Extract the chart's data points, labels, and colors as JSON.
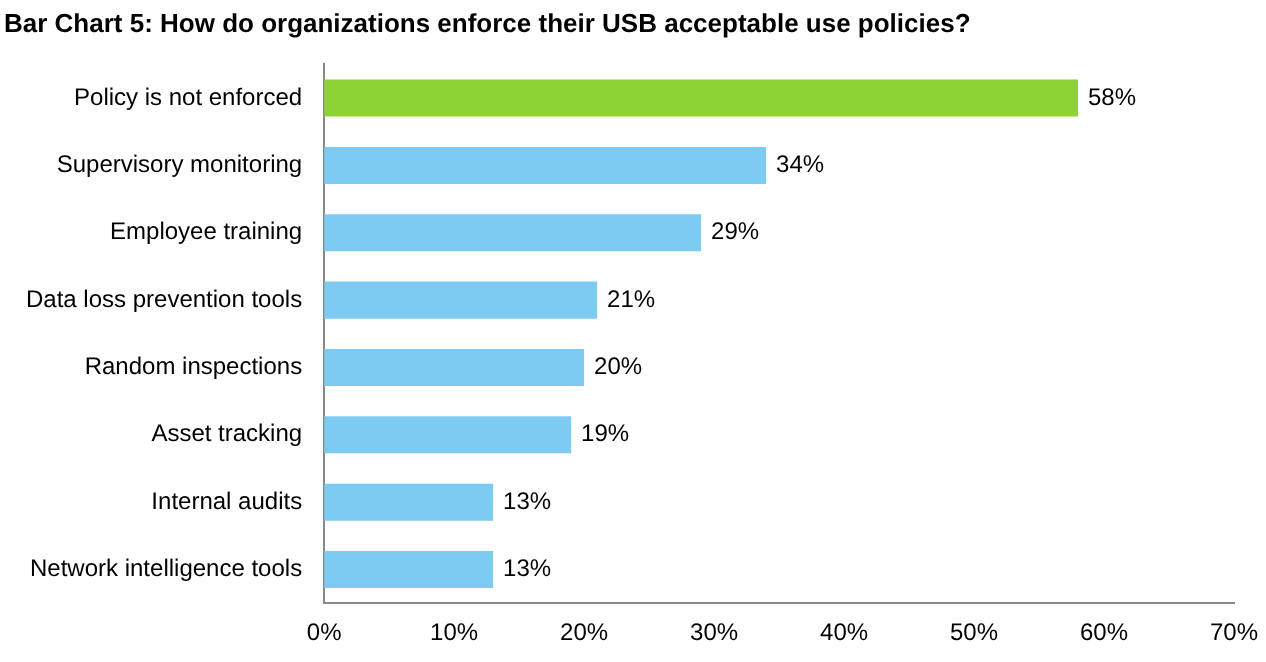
{
  "chart_data": {
    "type": "bar",
    "orientation": "horizontal",
    "title": "Bar Chart 5: How do organizations enforce their USB acceptable use policies?",
    "categories": [
      "Policy is not enforced",
      "Supervisory monitoring",
      "Employee training",
      "Data loss prevention tools",
      "Random inspections",
      "Asset tracking",
      "Internal audits",
      "Network intelligence tools"
    ],
    "values": [
      58,
      34,
      29,
      21,
      20,
      19,
      13,
      13
    ],
    "colors": [
      "#8ed334",
      "#7ecbf2",
      "#7ecbf2",
      "#7ecbf2",
      "#7ecbf2",
      "#7ecbf2",
      "#7ecbf2",
      "#7ecbf2"
    ],
    "value_labels": [
      "58%",
      "34%",
      "29%",
      "21%",
      "20%",
      "19%",
      "13%",
      "13%"
    ],
    "xlim": [
      0,
      70
    ],
    "xticks": [
      {
        "value": 0,
        "label": "0%"
      },
      {
        "value": 10,
        "label": "10%"
      },
      {
        "value": 20,
        "label": "20%"
      },
      {
        "value": 30,
        "label": "30%"
      },
      {
        "value": 40,
        "label": "40%"
      },
      {
        "value": 50,
        "label": "50%"
      },
      {
        "value": 60,
        "label": "60%"
      },
      {
        "value": 70,
        "label": "70%"
      }
    ],
    "grid": false,
    "legend": false
  }
}
